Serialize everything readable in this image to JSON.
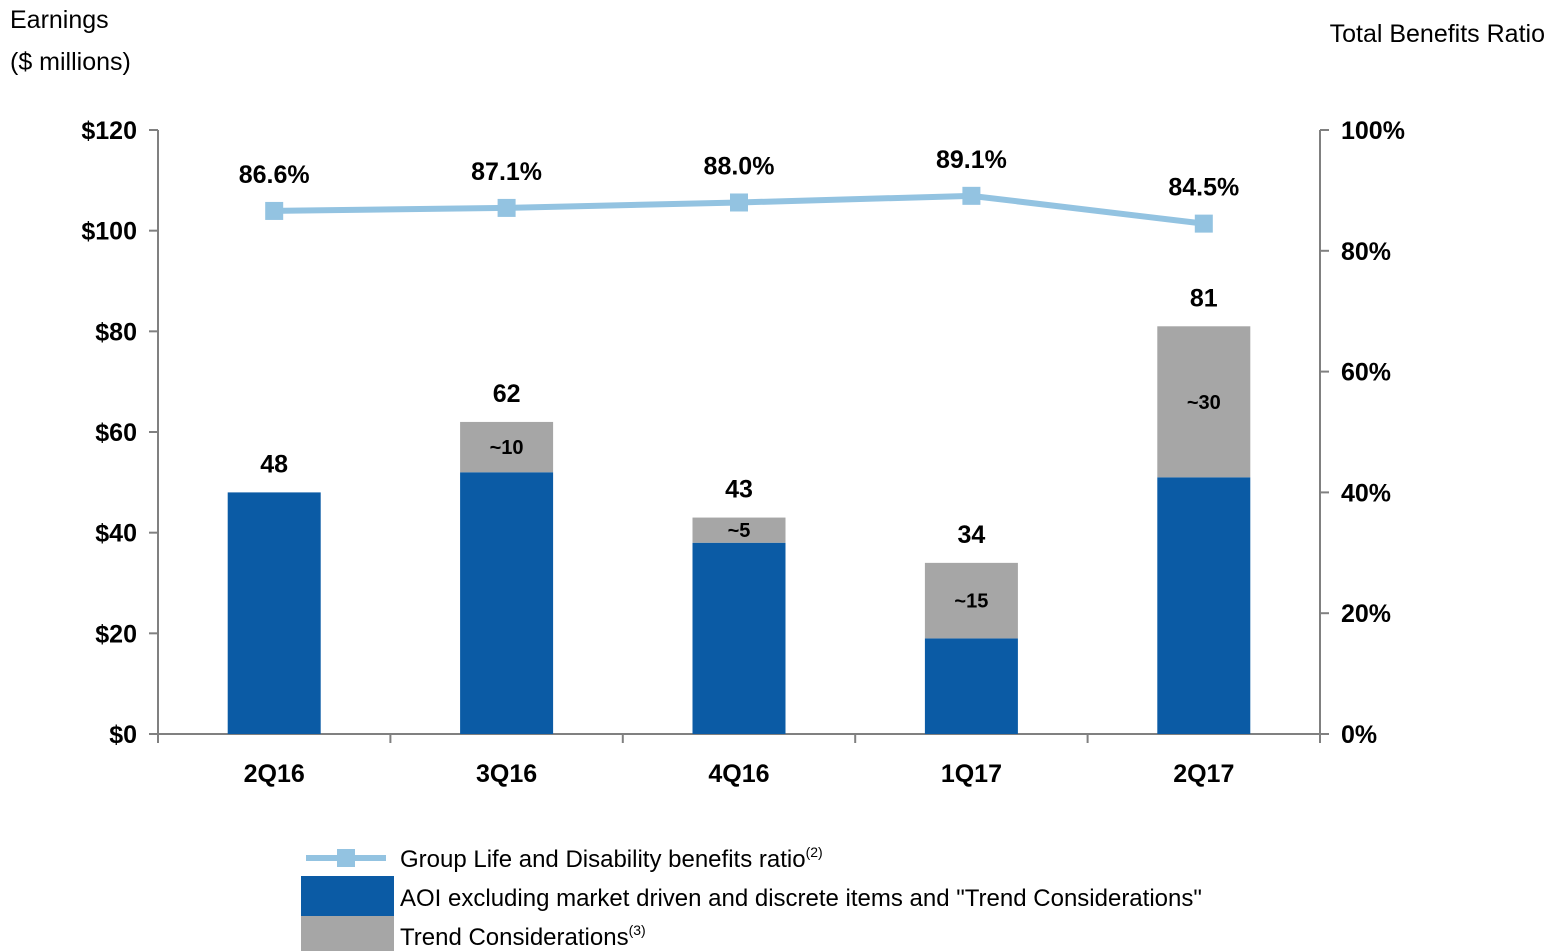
{
  "chart_data": {
    "type": "bar",
    "stacked": true,
    "categories": [
      "2Q16",
      "3Q16",
      "4Q16",
      "1Q17",
      "2Q17"
    ],
    "series": [
      {
        "name": "AOI excluding market driven and discrete items and \"Trend Considerations\"",
        "values": [
          48,
          52,
          38,
          19,
          51
        ],
        "color": "#0B5BA5"
      },
      {
        "name": "Trend Considerations",
        "sup": "(3)",
        "values": [
          0,
          10,
          5,
          15,
          30
        ],
        "labels": [
          "",
          "~10",
          "~5",
          "~15",
          "~30"
        ],
        "color": "#A6A6A6"
      }
    ],
    "totals": [
      "48",
      "62",
      "43",
      "34",
      "81"
    ],
    "line_series": {
      "name": "Group Life and Disability benefits ratio",
      "sup": "(2)",
      "values": [
        86.6,
        87.1,
        88.0,
        89.1,
        84.5
      ],
      "labels": [
        "86.6%",
        "87.1%",
        "88.0%",
        "89.1%",
        "84.5%"
      ],
      "color": "#93C3E1"
    },
    "y_left": {
      "title_line1": "Earnings",
      "title_line2": "($ millions)",
      "ticks": [
        "$0",
        "$20",
        "$40",
        "$60",
        "$80",
        "$100",
        "$120"
      ],
      "ylim": [
        0,
        120
      ]
    },
    "y_right": {
      "title": "Total Benefits Ratio",
      "ticks": [
        "0%",
        "20%",
        "40%",
        "60%",
        "80%",
        "100%"
      ],
      "ylim": [
        0,
        100
      ]
    },
    "grid": false,
    "legend_position": "bottom"
  }
}
